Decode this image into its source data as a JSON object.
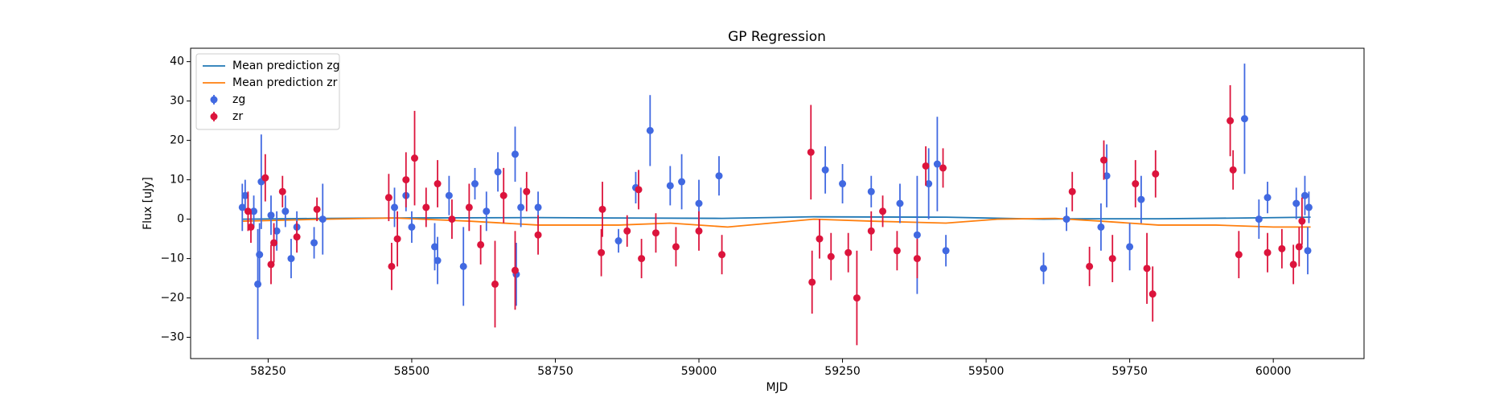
{
  "chart_data": {
    "type": "scatter",
    "title": "GP Regression",
    "xlabel": "MJD",
    "ylabel": "Flux [uJy]",
    "xlim": [
      58115,
      60158
    ],
    "ylim": [
      -35.4,
      43.4
    ],
    "xticks": [
      58250,
      58500,
      58750,
      59000,
      59250,
      59500,
      59750,
      60000
    ],
    "yticks": [
      {
        "value": -30,
        "label": "−30"
      },
      {
        "value": -20,
        "label": "−20"
      },
      {
        "value": -10,
        "label": "−10"
      },
      0,
      10,
      20,
      30,
      40
    ],
    "legend": "upper left",
    "series": [
      {
        "name": "Mean prediction zg",
        "type": "line",
        "color": "#1f77b4",
        "x": [
          58205,
          58350,
          58470,
          58720,
          58860,
          59040,
          59200,
          59430,
          59600,
          59650,
          59800,
          59950,
          60065
        ],
        "values": [
          0,
          0.2,
          0.3,
          0.4,
          0.3,
          0.2,
          0.6,
          0.5,
          0,
          0.1,
          0.1,
          0.3,
          0.5
        ]
      },
      {
        "name": "Mean prediction zr",
        "type": "line",
        "color": "#ff7f0e",
        "x": [
          58205,
          58350,
          58470,
          58600,
          58720,
          58860,
          58950,
          59050,
          59200,
          59300,
          59430,
          59520,
          59620,
          59700,
          59800,
          59900,
          60000,
          60065
        ],
        "values": [
          -0.5,
          0,
          0.3,
          -0.5,
          -1.5,
          -1.5,
          -1,
          -2,
          0,
          -0.5,
          -1,
          0,
          0.2,
          -0.5,
          -1.5,
          -1.5,
          -2,
          -2
        ]
      },
      {
        "name": "zg",
        "type": "errorbar",
        "color": "#4169e1",
        "x": [
          58205,
          58210,
          58225,
          58232,
          58235,
          58238,
          58255,
          58265,
          58280,
          58290,
          58300,
          58330,
          58345,
          58470,
          58490,
          58500,
          58540,
          58545,
          58565,
          58590,
          58610,
          58630,
          58650,
          58680,
          58682,
          58690,
          58720,
          58860,
          58890,
          58915,
          58950,
          58970,
          59000,
          59035,
          59220,
          59250,
          59300,
          59350,
          59380,
          59400,
          59415,
          59430,
          59600,
          59640,
          59700,
          59710,
          59750,
          59770,
          59950,
          59975,
          59990,
          60040,
          60055,
          60060,
          60062
        ],
        "values": [
          3,
          6,
          2,
          -16.5,
          -9,
          9.5,
          1,
          -3,
          2,
          -10,
          -2,
          -6,
          0,
          3,
          6,
          -2,
          -7,
          -10.5,
          6,
          -12,
          9,
          2,
          12,
          16.5,
          -14,
          3,
          3,
          -5.5,
          8,
          22.5,
          8.5,
          9.5,
          4,
          11,
          12.5,
          9,
          7,
          4,
          -4,
          9,
          14,
          -8,
          -12.5,
          0,
          -2,
          11,
          -7,
          5,
          25.5,
          0,
          5.5,
          4,
          6,
          -8,
          3
        ],
        "errors": [
          6,
          4,
          4,
          14,
          8,
          12,
          5,
          5,
          4,
          5,
          4,
          4,
          9,
          5,
          4,
          4,
          6,
          6,
          5,
          10,
          4,
          5,
          5,
          7,
          8,
          5,
          4,
          3,
          4,
          9,
          5,
          7,
          6,
          5,
          6,
          5,
          4,
          5,
          15,
          9,
          12,
          4,
          4,
          3,
          6,
          8,
          6,
          6,
          14,
          5,
          4,
          4,
          5,
          6,
          4
        ]
      },
      {
        "name": "zr",
        "type": "errorbar",
        "color": "#dc143c",
        "x": [
          58215,
          58220,
          58245,
          58255,
          58260,
          58275,
          58300,
          58335,
          58460,
          58465,
          58475,
          58490,
          58505,
          58525,
          58545,
          58570,
          58600,
          58620,
          58645,
          58660,
          58680,
          58700,
          58720,
          58830,
          58832,
          58875,
          58895,
          58900,
          58925,
          58960,
          59000,
          59040,
          59195,
          59197,
          59210,
          59230,
          59260,
          59275,
          59300,
          59320,
          59345,
          59380,
          59395,
          59425,
          59650,
          59680,
          59705,
          59720,
          59760,
          59780,
          59790,
          59795,
          59925,
          59930,
          59940,
          59990,
          60015,
          60035,
          60045,
          60050
        ],
        "values": [
          2,
          -2,
          10.5,
          -11.5,
          -6,
          7,
          -4.5,
          2.5,
          5.5,
          -12,
          -5,
          10,
          15.5,
          3,
          9,
          0,
          3,
          -6.5,
          -16.5,
          6,
          -13,
          7,
          -4,
          -8.5,
          2.5,
          -3,
          7.5,
          -10,
          -3.5,
          -7,
          -3,
          -9,
          17,
          -16,
          -5,
          -9.5,
          -8.5,
          -20,
          -3,
          2,
          -8,
          -10,
          13.5,
          13,
          7,
          -12,
          15,
          -10,
          9,
          -12.5,
          -19,
          11.5,
          25,
          12.5,
          -9,
          -8.5,
          -7.5,
          -11.5,
          -7,
          -0.5
        ],
        "errors": [
          5,
          4,
          6,
          5,
          5,
          4,
          4,
          3,
          6,
          6,
          7,
          7,
          12,
          5,
          6,
          5,
          6,
          5,
          11,
          7,
          10,
          5,
          5,
          6,
          7,
          4,
          5,
          5,
          5,
          5,
          5,
          5,
          12,
          8,
          5,
          6,
          5,
          12,
          5,
          4,
          5,
          5,
          5,
          5,
          5,
          5,
          5,
          6,
          6,
          9,
          7,
          6,
          9,
          5,
          6,
          5,
          5,
          5,
          5,
          6
        ]
      }
    ]
  }
}
